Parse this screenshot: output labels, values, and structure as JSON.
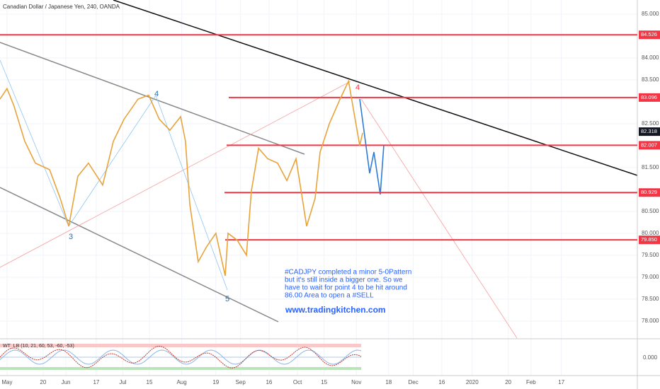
{
  "chart_data": {
    "type": "line",
    "title": "Canadian Dollar / Japanese Yen, 240, OANDA",
    "color": "#e8a33a",
    "x": [
      -3.7,
      0,
      3.7,
      9.3,
      14.9,
      22.4,
      28,
      32.5,
      37.3,
      42.9,
      50.4,
      56,
      61.6,
      69,
      74.6,
      80.2,
      85.8,
      91.4,
      94,
      96.3,
      100.7,
      105.2,
      110,
      114.9,
      116.4,
      121.3,
      126.1,
      128.7,
      132.5,
      137.3,
      142.5,
      147.4,
      152.2,
      154.9,
      157.8,
      162.3,
      164.9,
      169.8,
      175.4,
      179.9,
      182.8,
      185.8,
      187.3
    ],
    "values": [
      83.06,
      83.3,
      82.9,
      82.1,
      81.6,
      81.45,
      80.8,
      80.16,
      81.3,
      81.6,
      81.1,
      82.1,
      82.6,
      83.06,
      83.15,
      82.6,
      82.35,
      82.66,
      82.1,
      80.65,
      79.35,
      79.7,
      80.0,
      79.03,
      80.0,
      79.84,
      79.5,
      80.97,
      81.94,
      81.7,
      81.6,
      81.2,
      81.7,
      80.97,
      80.16,
      80.8,
      81.85,
      82.5,
      83.06,
      83.47,
      82.74,
      82.0,
      82.29
    ],
    "xlim": [
      -3.7,
      332
    ],
    "xticks": [
      {
        "value": 0,
        "label": "May"
      },
      {
        "value": 19,
        "label": "20"
      },
      {
        "value": 31,
        "label": "Jun"
      },
      {
        "value": 47,
        "label": "17"
      },
      {
        "value": 61,
        "label": "Jul"
      },
      {
        "value": 75,
        "label": "15"
      },
      {
        "value": 92,
        "label": "Aug"
      },
      {
        "value": 110,
        "label": "19"
      },
      {
        "value": 123,
        "label": "Sep"
      },
      {
        "value": 138,
        "label": "16"
      },
      {
        "value": 153,
        "label": "Oct"
      },
      {
        "value": 167,
        "label": "15"
      },
      {
        "value": 184,
        "label": "Nov"
      },
      {
        "value": 201,
        "label": "18"
      },
      {
        "value": 214,
        "label": "Dec"
      },
      {
        "value": 229,
        "label": "16"
      },
      {
        "value": 245,
        "label": "2020"
      },
      {
        "value": 264,
        "label": "20"
      },
      {
        "value": 276,
        "label": "Feb"
      },
      {
        "value": 292,
        "label": "17"
      }
    ],
    "ylim": [
      77.61,
      85.32
    ],
    "yticks": [
      {
        "value": 78,
        "label": "78.000"
      },
      {
        "value": 78.5,
        "label": "78.500"
      },
      {
        "value": 79,
        "label": "79.000"
      },
      {
        "value": 79.5,
        "label": "79.500"
      },
      {
        "value": 80,
        "label": "80.000"
      },
      {
        "value": 80.5,
        "label": "80.500"
      },
      {
        "value": 81.5,
        "label": "81.500"
      },
      {
        "value": 82.5,
        "label": "82.500"
      },
      {
        "value": 83.5,
        "label": "83.500"
      },
      {
        "value": 84,
        "label": "84.000"
      },
      {
        "value": 85,
        "label": "85.000"
      }
    ],
    "grid": true,
    "levels": [
      84.526,
      83.096,
      82.007,
      80.929,
      {
        "value": 79.85,
        "label": "79.850"
      }
    ],
    "level_color": "#f23645",
    "last_price": 82.318,
    "wave_labels": [
      "3",
      "4",
      "5",
      "4"
    ],
    "annotation_lines": [
      "#CADJPY completed a minor 5-0Pattern",
      "but it's still inside a bigger one. So we",
      "have to wait for point 4 to be hit around",
      "86.00 Area to open a #SELL"
    ],
    "website": "www.tradingkitchen.com",
    "oscillator_label": "WT_LB (10, 21, 60, 53, -60, -53)",
    "oscillator_zero": "0.000"
  }
}
